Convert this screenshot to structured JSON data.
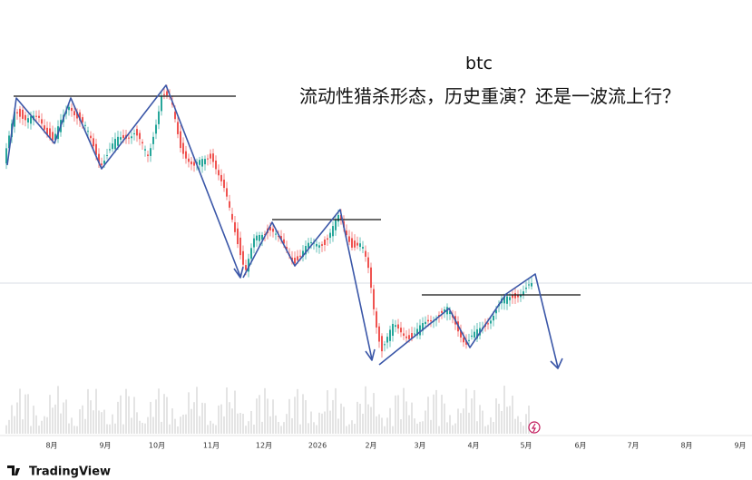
{
  "annotation": {
    "title": "btc",
    "subtitle": "流动性猎杀形态，历史重演？还是一波流上行？"
  },
  "time_axis": {
    "labels": [
      "8月",
      "9月",
      "10月",
      "11月",
      "12月",
      "2026",
      "2月",
      "3月",
      "4月",
      "5月",
      "6月",
      "7月",
      "8月",
      "9月"
    ]
  },
  "footer": {
    "brand": "TradingView"
  }
}
